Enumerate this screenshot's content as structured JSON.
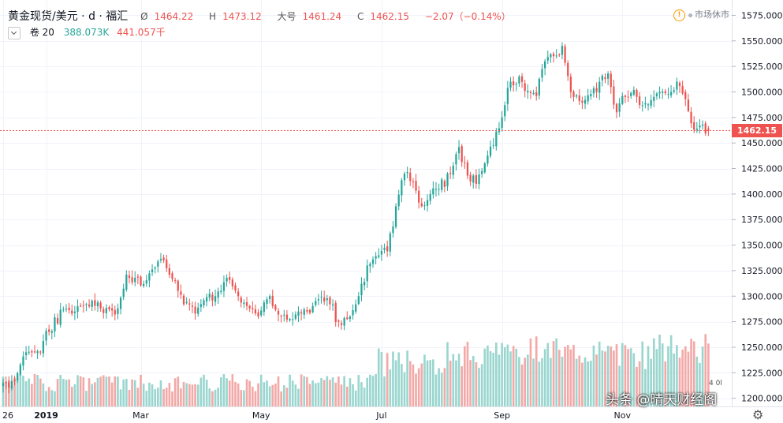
{
  "header": {
    "symbol": "黄金现货/美元 · d · 福汇",
    "ohlc": {
      "open_label": "Ø",
      "open": "1464.22",
      "high_label": "H",
      "high": "1473.12",
      "low_label": "大号",
      "low": "1461.24",
      "close_label": "C",
      "close": "1462.15",
      "change": "−2.07（−0.14%）"
    },
    "volume_label": "卷 20",
    "volume_a": "388.073K",
    "volume_b": "441.057千"
  },
  "status": {
    "warning_icon": "warning-icon",
    "text": "市场休市"
  },
  "last_price_label": "1462.15",
  "mini_label": "4 0l",
  "watermark": "头条 @晴天财经阁",
  "colors": {
    "up": "#26a69a",
    "down": "#ef5350",
    "vol_up": "#9ad6cf",
    "vol_down": "#f2a9a7",
    "grid": "#f0f3fa"
  },
  "chart_data": {
    "type": "candlestick",
    "instrument": "XAU/USD",
    "y_ticks": [
      1200,
      1225,
      1250,
      1275,
      1300,
      1325,
      1350,
      1375,
      1400,
      1425,
      1450,
      1475,
      1500,
      1525,
      1550,
      1575
    ],
    "y_range": [
      1192,
      1590
    ],
    "x_ticks": [
      "26",
      "2019",
      "Mar",
      "May",
      "Jul",
      "Sep",
      "Nov"
    ],
    "x_tick_positions": [
      0,
      15,
      48,
      90,
      132,
      174,
      216
    ],
    "n_bars": 247,
    "anchors": [
      [
        0,
        1215
      ],
      [
        3,
        1217
      ],
      [
        8,
        1245
      ],
      [
        12,
        1246
      ],
      [
        16,
        1265
      ],
      [
        21,
        1287
      ],
      [
        26,
        1290
      ],
      [
        30,
        1290
      ],
      [
        34,
        1288
      ],
      [
        39,
        1282
      ],
      [
        43,
        1321
      ],
      [
        46,
        1318
      ],
      [
        49,
        1312
      ],
      [
        53,
        1328
      ],
      [
        56,
        1335
      ],
      [
        60,
        1315
      ],
      [
        63,
        1292
      ],
      [
        67,
        1283
      ],
      [
        70,
        1296
      ],
      [
        74,
        1300
      ],
      [
        78,
        1318
      ],
      [
        82,
        1300
      ],
      [
        86,
        1288
      ],
      [
        89,
        1280
      ],
      [
        93,
        1300
      ],
      [
        96,
        1282
      ],
      [
        99,
        1277
      ],
      [
        103,
        1285
      ],
      [
        106,
        1285
      ],
      [
        110,
        1297
      ],
      [
        114,
        1292
      ],
      [
        117,
        1275
      ],
      [
        121,
        1280
      ],
      [
        124,
        1300
      ],
      [
        127,
        1330
      ],
      [
        131,
        1340
      ],
      [
        134,
        1344
      ],
      [
        137,
        1388
      ],
      [
        140,
        1420
      ],
      [
        143,
        1412
      ],
      [
        146,
        1388
      ],
      [
        149,
        1400
      ],
      [
        152,
        1405
      ],
      [
        156,
        1420
      ],
      [
        159,
        1446
      ],
      [
        162,
        1418
      ],
      [
        165,
        1410
      ],
      [
        168,
        1430
      ],
      [
        171,
        1448
      ],
      [
        174,
        1475
      ],
      [
        177,
        1510
      ],
      [
        180,
        1515
      ],
      [
        183,
        1501
      ],
      [
        186,
        1496
      ],
      [
        189,
        1530
      ],
      [
        192,
        1535
      ],
      [
        195,
        1545
      ],
      [
        198,
        1500
      ],
      [
        201,
        1491
      ],
      [
        205,
        1498
      ],
      [
        208,
        1510
      ],
      [
        211,
        1518
      ],
      [
        214,
        1480
      ],
      [
        217,
        1495
      ],
      [
        220,
        1502
      ],
      [
        223,
        1487
      ],
      [
        226,
        1492
      ],
      [
        229,
        1500
      ],
      [
        232,
        1498
      ],
      [
        235,
        1510
      ],
      [
        238,
        1493
      ],
      [
        241,
        1463
      ],
      [
        244,
        1468
      ],
      [
        246,
        1462
      ]
    ],
    "volume_range": [
      0,
      300000
    ]
  }
}
